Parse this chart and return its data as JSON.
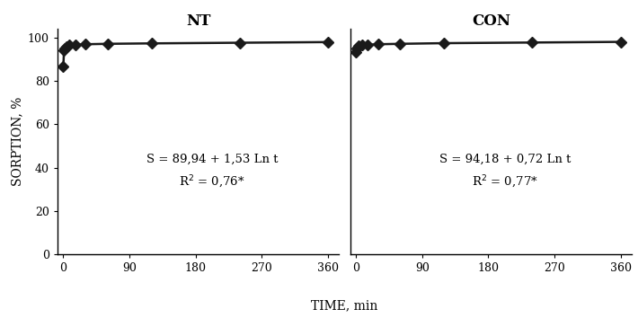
{
  "NT": {
    "time": [
      0,
      1,
      2,
      4,
      8,
      16,
      30,
      60,
      120,
      240,
      360
    ],
    "sorption": [
      86.5,
      94.0,
      95.0,
      95.8,
      96.3,
      96.6,
      96.8,
      97.0,
      97.2,
      97.5,
      97.8
    ],
    "eq_line1": "S = 89,94 + 1,53 Ln t",
    "eq_line2": "R$^2$ = 0,76*",
    "title": "NT"
  },
  "CON": {
    "time": [
      0,
      1,
      2,
      4,
      8,
      16,
      30,
      60,
      120,
      240,
      360
    ],
    "sorption": [
      93.0,
      94.8,
      95.4,
      95.9,
      96.3,
      96.6,
      96.8,
      97.0,
      97.3,
      97.6,
      97.9
    ],
    "eq_line1": "S = 94,18 + 0,72 Ln t",
    "eq_line2": "R$^2$ = 0,77*",
    "title": "CON"
  },
  "xlabel": "TIME, min",
  "ylabel": "SORPTION, %",
  "xlim": [
    -8,
    375
  ],
  "ylim": [
    0,
    104
  ],
  "yticks": [
    0,
    20,
    40,
    60,
    80,
    100
  ],
  "xticks": [
    0,
    90,
    180,
    270,
    360
  ],
  "marker": "D",
  "markersize": 6,
  "linewidth": 1.8,
  "color": "#1a1a1a",
  "eq_fontsize": 9.5,
  "title_fontsize": 12,
  "tick_fontsize": 9,
  "ylabel_fontsize": 10,
  "xlabel_fontsize": 10
}
